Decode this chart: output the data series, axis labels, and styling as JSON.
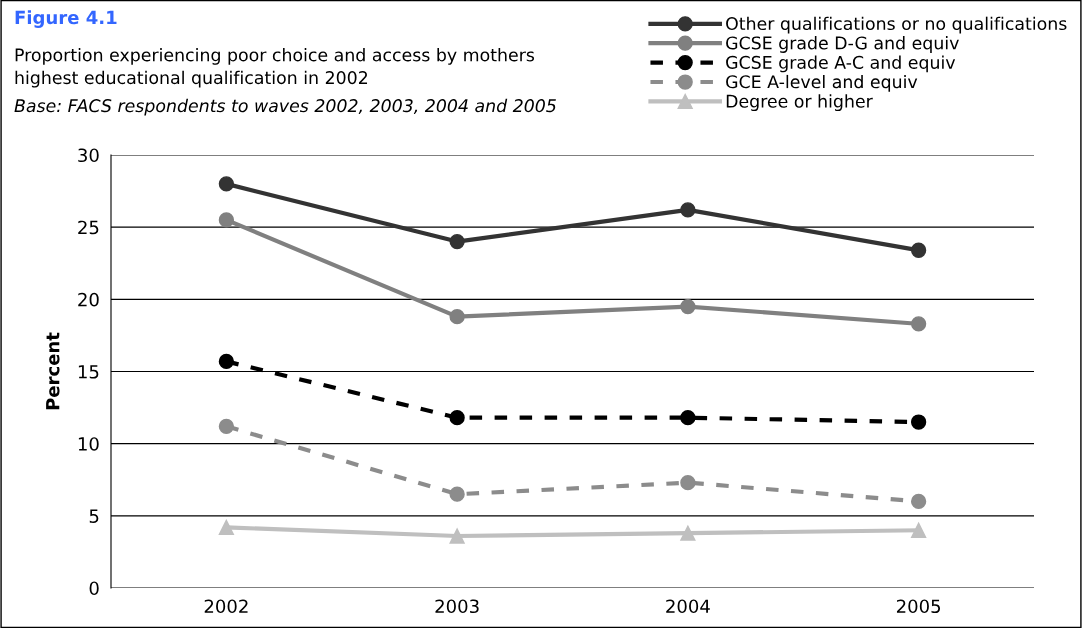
{
  "chart_data": {
    "type": "line",
    "title": "Figure 4.1",
    "subtitle": "Proportion experiencing poor choice and access by mothers\nhighest educational qualification in 2002",
    "annotations": [
      "Base: FACS respondents to waves 2002, 2003, 2004 and 2005"
    ],
    "ylabel": "Percent",
    "categories": [
      "2002",
      "2003",
      "2004",
      "2005"
    ],
    "series": [
      {
        "name": "Other qualifications or no qualifications",
        "color": "#333333",
        "marker": "circle",
        "line_style": "solid",
        "values": [
          28.0,
          24.0,
          26.2,
          23.4
        ]
      },
      {
        "name": "GCSE grade D-G and equiv",
        "color": "#808080",
        "marker": "circle",
        "line_style": "solid",
        "values": [
          25.5,
          18.8,
          19.5,
          18.3
        ]
      },
      {
        "name": "GCSE grade A-C and equiv",
        "color": "#000000",
        "marker": "circle",
        "line_style": "dashed",
        "values": [
          15.7,
          11.8,
          11.8,
          11.5
        ]
      },
      {
        "name": "GCE A-level and equiv",
        "color": "#8c8c8c",
        "marker": "circle",
        "line_style": "dashed",
        "values": [
          11.2,
          6.5,
          7.3,
          6.0
        ]
      },
      {
        "name": "Degree or higher",
        "color": "#bfbfbf",
        "marker": "triangle",
        "line_style": "solid",
        "values": [
          4.2,
          3.6,
          3.8,
          4.0
        ]
      }
    ],
    "ylim": [
      0,
      30
    ],
    "yticks": [
      0,
      5,
      10,
      15,
      20,
      25,
      30
    ],
    "grid": "y",
    "legend": "top right"
  }
}
